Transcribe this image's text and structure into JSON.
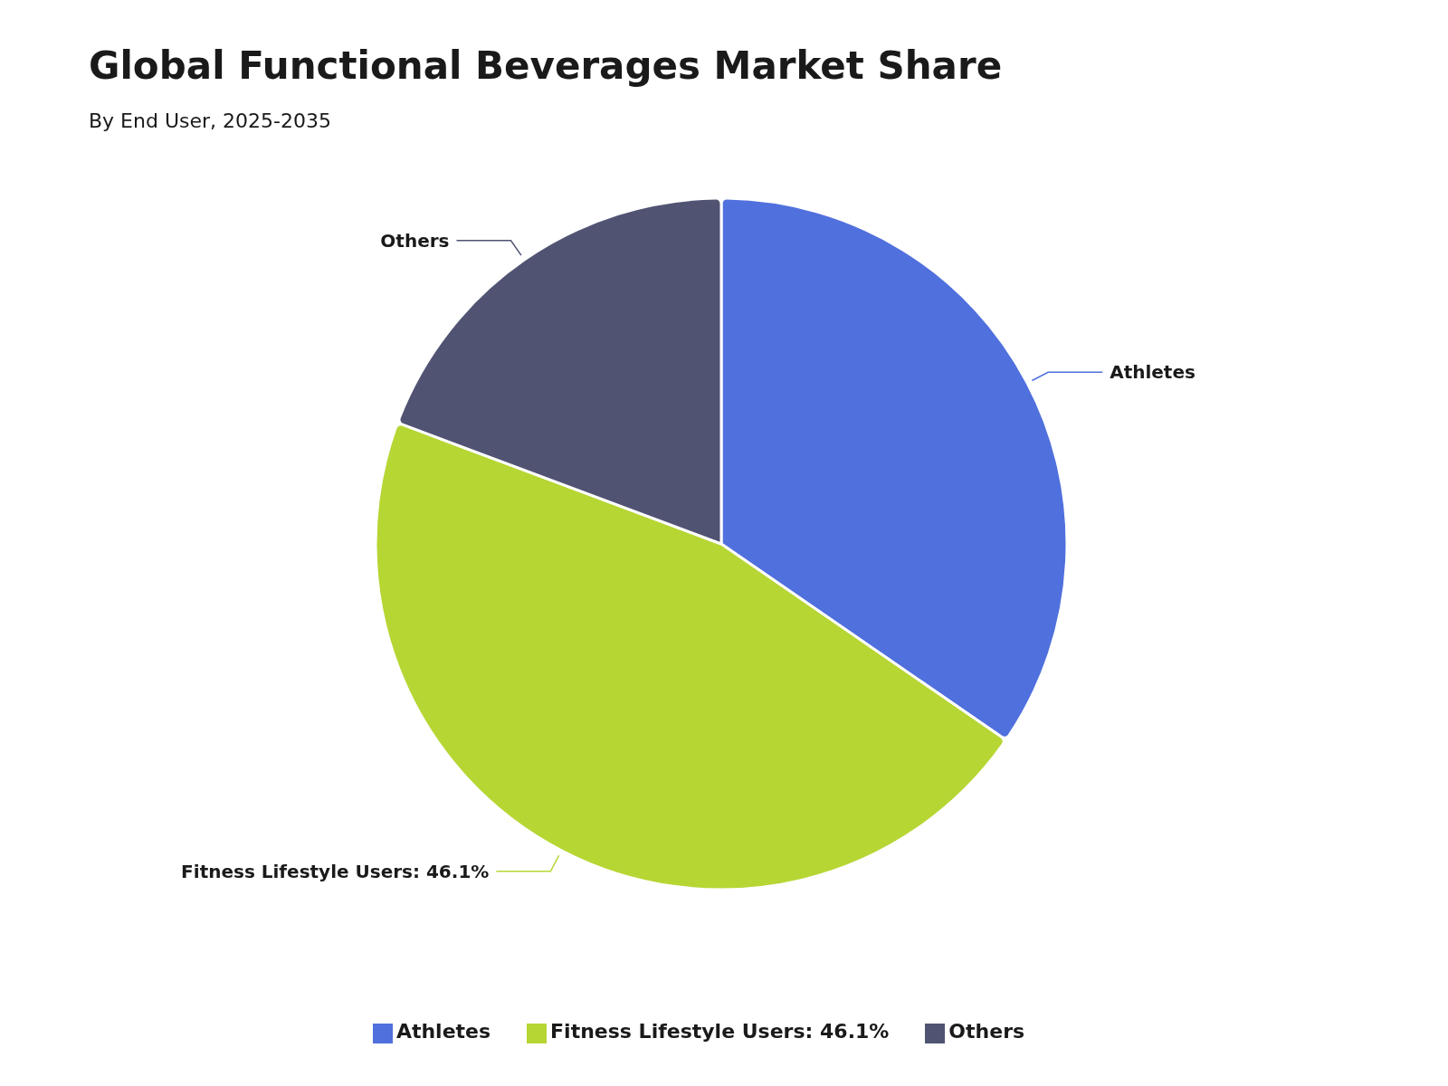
{
  "chart_data": {
    "type": "pie",
    "title": "Global Functional Beverages Market Share",
    "subtitle": "By End User, 2025-2035",
    "categories": [
      "Athletes",
      "Fitness Lifestyle Users: 46.1%",
      "Others"
    ],
    "values": [
      34.6,
      46.1,
      19.3
    ],
    "colors": [
      "#5070dd",
      "#b6d634",
      "#505372"
    ],
    "legend": "bottom"
  }
}
